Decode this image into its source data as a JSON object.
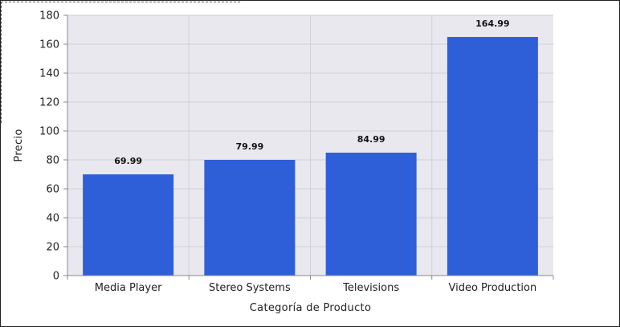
{
  "chart_data": {
    "type": "bar",
    "title": "",
    "xlabel": "Categoría de Producto",
    "ylabel": "Precio",
    "categories": [
      "Media Player",
      "Stereo Systems",
      "Televisions",
      "Video Production"
    ],
    "values": [
      69.99,
      79.99,
      84.99,
      164.99
    ],
    "data_labels": [
      "69.99",
      "79.99",
      "84.99",
      "164.99"
    ],
    "ylim": [
      0,
      180
    ],
    "yticks": [
      0,
      20,
      40,
      60,
      80,
      100,
      120,
      140,
      160,
      180
    ],
    "grid": true,
    "legend": "none",
    "colors": {
      "bar": "#2f5fd8",
      "plot_background": "#e9e8ef",
      "grid": "#cfcfd6",
      "axis": "#888888"
    }
  }
}
